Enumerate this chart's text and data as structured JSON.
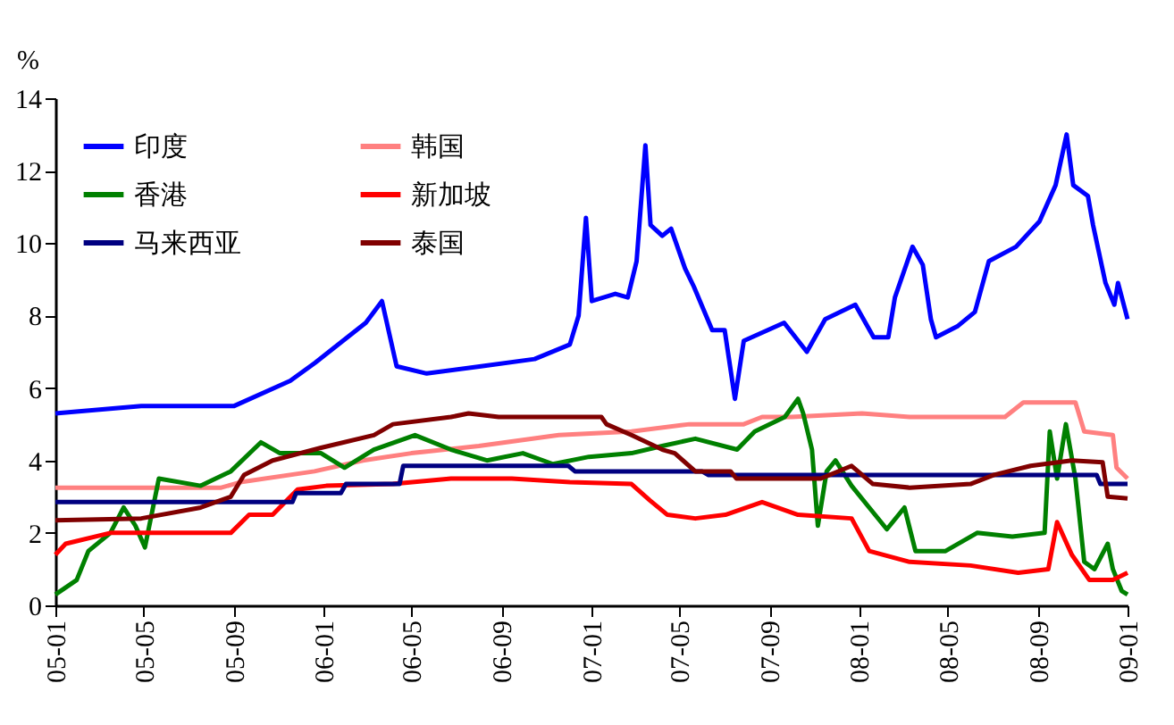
{
  "chart_data": {
    "type": "line",
    "ylabel": "%",
    "xlim": [
      "2005-01-01",
      "2009-01-01"
    ],
    "xticks": [
      {
        "value": "2005-01-01",
        "label": "05-01"
      },
      {
        "value": "2005-05-01",
        "label": "05-05"
      },
      {
        "value": "2005-09-01",
        "label": "05-09"
      },
      {
        "value": "2006-01-01",
        "label": "06-01"
      },
      {
        "value": "2006-05-01",
        "label": "06-05"
      },
      {
        "value": "2006-09-01",
        "label": "06-09"
      },
      {
        "value": "2007-01-01",
        "label": "07-01"
      },
      {
        "value": "2007-05-01",
        "label": "07-05"
      },
      {
        "value": "2007-09-01",
        "label": "07-09"
      },
      {
        "value": "2008-01-01",
        "label": "08-01"
      },
      {
        "value": "2008-05-01",
        "label": "08-05"
      },
      {
        "value": "2008-09-01",
        "label": "08-09"
      },
      {
        "value": "2009-01-01",
        "label": "09-01"
      }
    ],
    "ylim": [
      0,
      14
    ],
    "yticks": [
      0,
      2,
      4,
      6,
      8,
      10,
      12,
      14
    ],
    "grid": false,
    "legend": "top left",
    "marker": "none",
    "line_style": "solid",
    "series": [
      {
        "name": "印度",
        "color": "#0000ff",
        "x": [
          "2005-01-01",
          "2005-04-28",
          "2005-09-01",
          "2005-11-17",
          "2005-12-21",
          "2006-01-15",
          "2006-02-28",
          "2006-03-22",
          "2006-04-11",
          "2006-05-22",
          "2006-08-04",
          "2006-10-16",
          "2006-12-03",
          "2006-12-15",
          "2006-12-25",
          "2007-01-02",
          "2007-02-03",
          "2007-02-20",
          "2007-03-04",
          "2007-03-16",
          "2007-03-23",
          "2007-04-08",
          "2007-04-20",
          "2007-05-09",
          "2007-05-21",
          "2007-06-15",
          "2007-07-02",
          "2007-07-16",
          "2007-07-28",
          "2007-09-21",
          "2007-10-22",
          "2007-11-16",
          "2007-12-27",
          "2008-01-21",
          "2008-02-10",
          "2008-02-19",
          "2008-03-14",
          "2008-03-28",
          "2008-04-08",
          "2008-04-15",
          "2008-05-14",
          "2008-06-07",
          "2008-06-26",
          "2008-08-02",
          "2008-09-03",
          "2008-09-25",
          "2008-10-10",
          "2008-10-19",
          "2008-11-08",
          "2008-11-15",
          "2008-12-02",
          "2008-12-14",
          "2008-12-19",
          "2009-01-01"
        ],
        "values": [
          5.3,
          5.5,
          5.5,
          6.2,
          6.7,
          7.1,
          7.8,
          8.4,
          6.6,
          6.4,
          6.6,
          6.8,
          7.2,
          8.0,
          10.7,
          8.4,
          8.6,
          8.5,
          9.5,
          12.7,
          10.5,
          10.2,
          10.4,
          9.3,
          8.8,
          7.6,
          7.6,
          5.7,
          7.3,
          7.8,
          7.0,
          7.9,
          8.3,
          7.4,
          7.4,
          8.5,
          9.9,
          9.4,
          7.9,
          7.4,
          7.7,
          8.1,
          9.5,
          9.9,
          10.6,
          11.6,
          13.0,
          11.6,
          11.3,
          10.5,
          8.9,
          8.3,
          8.9,
          7.9
        ]
      },
      {
        "name": "韩国",
        "color": "#ff8080",
        "x": [
          "2005-01-01",
          "2005-08-15",
          "2005-09-10",
          "2005-12-20",
          "2006-02-24",
          "2006-05-01",
          "2006-08-01",
          "2006-11-18",
          "2007-02-25",
          "2007-05-15",
          "2007-07-28",
          "2007-08-22",
          "2007-10-01",
          "2008-01-05",
          "2008-03-10",
          "2008-07-18",
          "2008-08-12",
          "2008-10-22",
          "2008-11-03",
          "2008-12-12",
          "2008-12-17",
          "2009-01-01"
        ],
        "values": [
          3.25,
          3.25,
          3.4,
          3.7,
          4.0,
          4.2,
          4.4,
          4.7,
          4.8,
          5.0,
          5.0,
          5.2,
          5.2,
          5.3,
          5.2,
          5.2,
          5.6,
          5.6,
          4.8,
          4.7,
          3.8,
          3.5
        ]
      },
      {
        "name": "香港",
        "color": "#008000",
        "x": [
          "2005-01-01",
          "2005-01-30",
          "2005-02-15",
          "2005-03-17",
          "2005-04-04",
          "2005-04-20",
          "2005-05-03",
          "2005-05-22",
          "2005-07-18",
          "2005-08-28",
          "2005-10-08",
          "2005-11-03",
          "2005-12-29",
          "2006-01-30",
          "2006-03-11",
          "2006-05-06",
          "2006-06-24",
          "2006-08-12",
          "2006-09-30",
          "2006-11-10",
          "2006-12-29",
          "2007-02-25",
          "2007-04-08",
          "2007-05-23",
          "2007-07-19",
          "2007-08-12",
          "2007-09-22",
          "2007-10-10",
          "2007-10-17",
          "2007-10-29",
          "2007-11-06",
          "2007-11-18",
          "2007-11-30",
          "2007-12-22",
          "2008-01-15",
          "2008-02-08",
          "2008-03-03",
          "2008-03-18",
          "2008-04-28",
          "2008-06-10",
          "2008-07-28",
          "2008-09-10",
          "2008-09-17",
          "2008-09-27",
          "2008-10-09",
          "2008-10-22",
          "2008-11-03",
          "2008-11-17",
          "2008-12-05",
          "2008-12-12",
          "2008-12-24",
          "2009-01-01"
        ],
        "values": [
          0.3,
          0.7,
          1.5,
          2.0,
          2.7,
          2.2,
          1.6,
          3.5,
          3.3,
          3.7,
          4.5,
          4.2,
          4.2,
          3.8,
          4.3,
          4.7,
          4.3,
          4.0,
          4.2,
          3.9,
          4.1,
          4.2,
          4.4,
          4.6,
          4.3,
          4.8,
          5.2,
          5.7,
          5.3,
          4.3,
          2.2,
          3.7,
          4.0,
          3.3,
          2.7,
          2.1,
          2.7,
          1.5,
          1.5,
          2.0,
          1.9,
          2.0,
          4.8,
          3.5,
          5.0,
          3.5,
          1.2,
          1.0,
          1.7,
          1.0,
          0.4,
          0.3
        ]
      },
      {
        "name": "新加坡",
        "color": "#ff0000",
        "x": [
          "2005-01-01",
          "2005-01-15",
          "2005-03-17",
          "2005-06-08",
          "2005-08-28",
          "2005-09-22",
          "2005-10-24",
          "2005-11-27",
          "2006-01-05",
          "2006-04-06",
          "2006-06-24",
          "2006-09-15",
          "2006-12-03",
          "2007-02-25",
          "2007-03-22",
          "2007-04-15",
          "2007-05-23",
          "2007-07-03",
          "2007-08-22",
          "2007-10-10",
          "2007-12-22",
          "2008-01-15",
          "2008-03-10",
          "2008-06-01",
          "2008-08-05",
          "2008-09-15",
          "2008-09-27",
          "2008-10-17",
          "2008-11-10",
          "2008-12-12",
          "2009-01-01"
        ],
        "values": [
          1.4,
          1.7,
          2.0,
          2.0,
          2.0,
          2.5,
          2.5,
          3.2,
          3.3,
          3.35,
          3.5,
          3.5,
          3.4,
          3.35,
          2.9,
          2.5,
          2.4,
          2.5,
          2.85,
          2.5,
          2.4,
          1.5,
          1.2,
          1.1,
          0.9,
          1.0,
          2.3,
          1.4,
          0.7,
          0.7,
          0.9
        ]
      },
      {
        "name": "马来西亚",
        "color": "#000080",
        "x": [
          "2005-01-01",
          "2005-11-20",
          "2005-11-25",
          "2006-01-25",
          "2006-02-01",
          "2006-04-15",
          "2006-04-20",
          "2006-12-01",
          "2006-12-10",
          "2007-06-01",
          "2007-06-10",
          "2008-11-20",
          "2008-11-25",
          "2009-01-01"
        ],
        "values": [
          2.85,
          2.85,
          3.1,
          3.1,
          3.35,
          3.35,
          3.85,
          3.85,
          3.7,
          3.7,
          3.6,
          3.6,
          3.35,
          3.35
        ]
      },
      {
        "name": "泰国",
        "color": "#800000",
        "x": [
          "2005-01-01",
          "2005-04-28",
          "2005-07-18",
          "2005-08-28",
          "2005-09-15",
          "2005-10-24",
          "2005-12-29",
          "2006-03-11",
          "2006-04-06",
          "2006-06-24",
          "2006-07-18",
          "2006-08-28",
          "2007-01-15",
          "2007-01-22",
          "2007-02-25",
          "2007-04-08",
          "2007-04-25",
          "2007-05-23",
          "2007-07-10",
          "2007-07-18",
          "2007-11-10",
          "2007-12-22",
          "2008-01-20",
          "2008-03-10",
          "2008-06-01",
          "2008-07-03",
          "2008-08-22",
          "2008-10-17",
          "2008-11-28",
          "2008-12-05",
          "2009-01-01"
        ],
        "values": [
          2.35,
          2.4,
          2.7,
          3.0,
          3.6,
          4.0,
          4.35,
          4.7,
          5.0,
          5.2,
          5.3,
          5.2,
          5.2,
          5.0,
          4.7,
          4.3,
          4.2,
          3.7,
          3.7,
          3.5,
          3.5,
          3.85,
          3.35,
          3.25,
          3.35,
          3.6,
          3.85,
          4.0,
          3.95,
          3.0,
          2.95
        ]
      }
    ]
  }
}
